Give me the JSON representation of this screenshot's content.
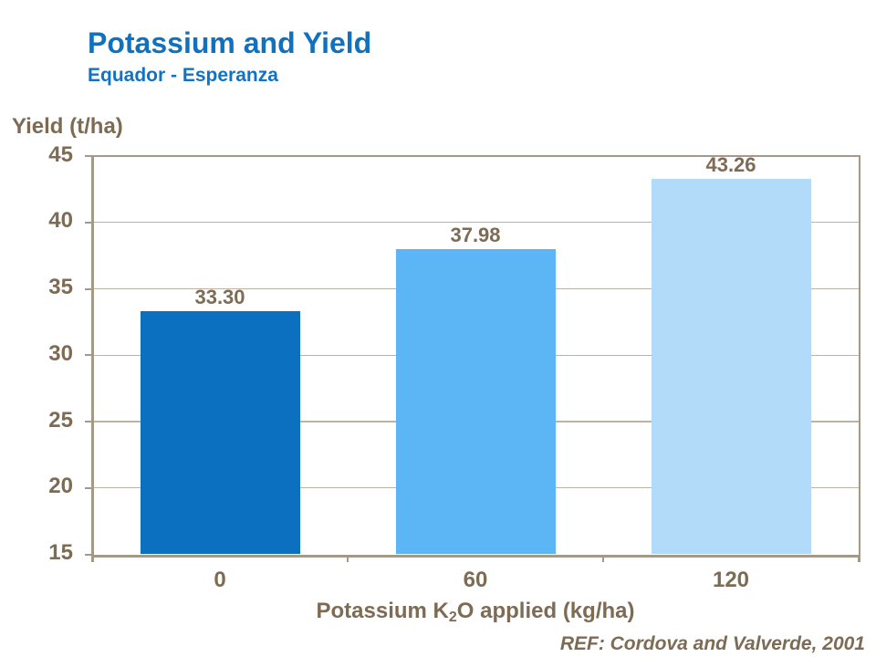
{
  "chart_data": {
    "type": "bar",
    "title": "Potassium and Yield",
    "subtitle": "Equador - Esperanza",
    "ylabel": "Yield (t/ha)",
    "xlabel_parts": {
      "pre": "Potassium K",
      "sub": "2",
      "post": "O applied (kg/ha)"
    },
    "xlabel_plain": "Potassium K2O applied (kg/ha)",
    "categories": [
      "0",
      "60",
      "120"
    ],
    "values": [
      33.3,
      37.98,
      43.26
    ],
    "value_labels": [
      "33.30",
      "37.98",
      "43.26"
    ],
    "ylim": [
      15,
      45
    ],
    "yticks": [
      15,
      20,
      25,
      30,
      35,
      40,
      45
    ],
    "grid": "horizontal-major",
    "legend": "none",
    "reference": "REF: Cordova and Valverde, 2001",
    "colors": {
      "bars": [
        "#0B70C0",
        "#5CB5F5",
        "#B1DBF9"
      ],
      "title_text": "#1072BE",
      "axis_text": "#7D6B53",
      "axis_line": "#A49886",
      "gridline": "#BFB2A3"
    }
  }
}
